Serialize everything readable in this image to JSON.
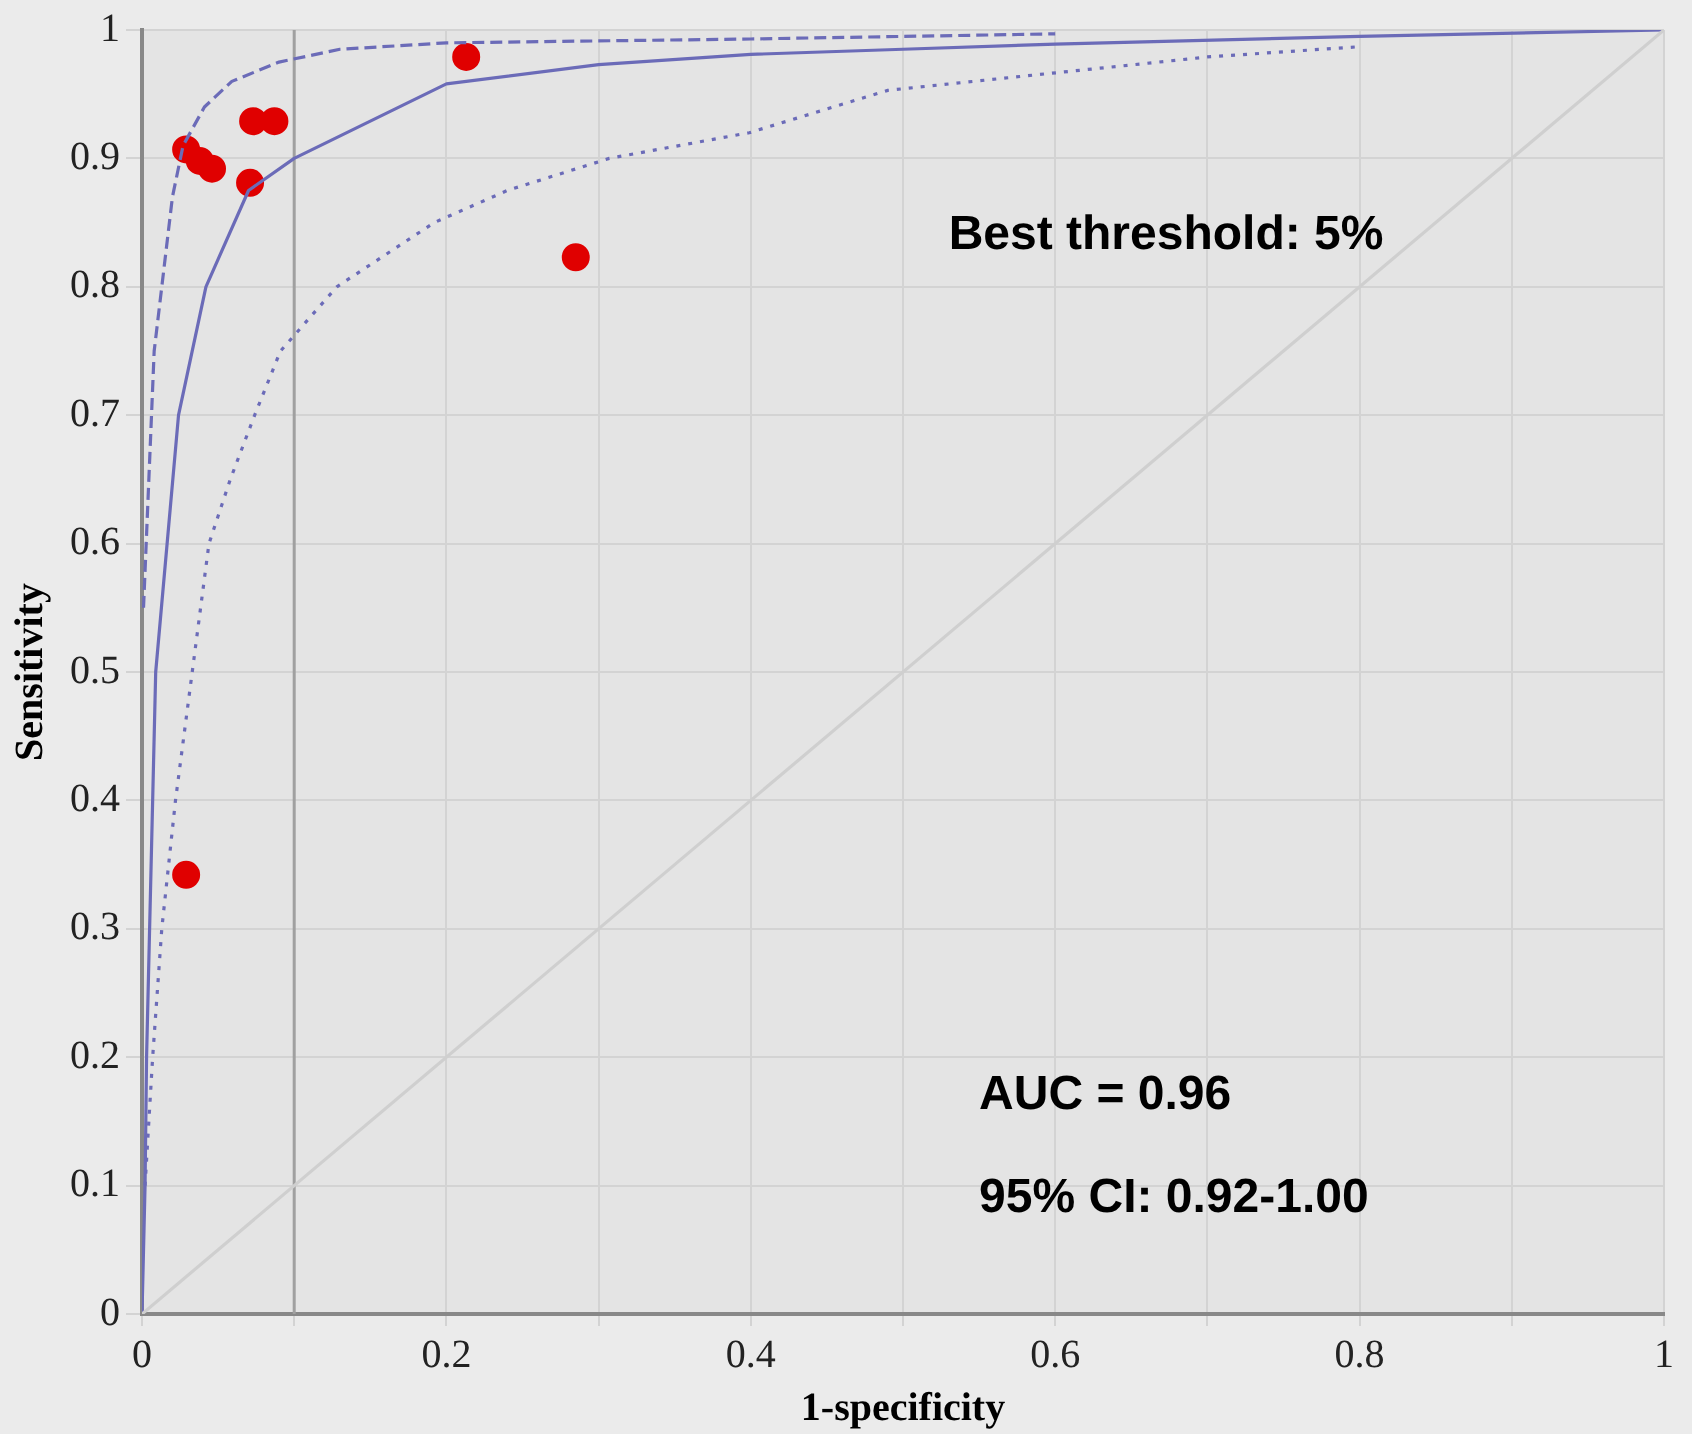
{
  "chart_data": {
    "type": "scatter",
    "xlabel": "1-specificity",
    "ylabel": "Sensitivity",
    "annotations": [
      "Best threshold: 5%",
      "AUC = 0.96",
      "95% CI: 0.92-1.00"
    ],
    "xlim": [
      0,
      1
    ],
    "ylim": [
      0,
      1
    ],
    "xticks": [
      0,
      {
        "value": 0.1,
        "label": null
      },
      0.2,
      {
        "value": 0.3,
        "label": null
      },
      0.4,
      {
        "value": 0.5,
        "label": null
      },
      0.6,
      {
        "value": 0.7,
        "label": null
      },
      0.8,
      {
        "value": 0.9,
        "label": null
      },
      1
    ],
    "yticks": [
      0,
      0.1,
      0.2,
      0.3,
      0.4,
      0.5,
      0.6,
      0.7,
      0.8,
      0.9,
      1
    ],
    "grid": true,
    "legend": false,
    "ref_lines": [
      {
        "axis": "x",
        "value": 0.1,
        "color": "#a0a0a0"
      }
    ],
    "series": [
      {
        "type": "line",
        "marker": "none",
        "color": "#cfcfcf",
        "line_style": "solid",
        "x": [
          0,
          1
        ],
        "values": [
          0,
          1
        ]
      },
      {
        "type": "line",
        "marker": "none",
        "color": "#6b6bb8",
        "line_style": "solid",
        "x": [
          0,
          0.002,
          0.003,
          0.009,
          0.024,
          0.042,
          0.07,
          0.1,
          0.2,
          0.3,
          0.4,
          0.5,
          0.6,
          0.8,
          1
        ],
        "values": [
          0,
          0.1,
          0.2,
          0.5,
          0.7,
          0.8,
          0.875,
          0.9,
          0.958,
          0.973,
          0.981,
          0.985,
          0.989,
          0.995,
          1
        ]
      },
      {
        "type": "line",
        "marker": "none",
        "color": "#6b6bb8",
        "line_style": "dashed",
        "x": [
          0.001,
          0.008,
          0.013,
          0.02,
          0.027,
          0.041,
          0.059,
          0.09,
          0.13,
          0.2,
          0.4,
          0.6
        ],
        "values": [
          0.55,
          0.75,
          0.8,
          0.87,
          0.91,
          0.94,
          0.96,
          0.975,
          0.985,
          0.99,
          0.993,
          0.997
        ]
      },
      {
        "type": "line",
        "marker": "none",
        "color": "#6b6bb8",
        "line_style": "dotted",
        "x": [
          0.002,
          0.007,
          0.013,
          0.022,
          0.033,
          0.044,
          0.058,
          0.074,
          0.091,
          0.128,
          0.192,
          0.24,
          0.307,
          0.399,
          0.49,
          0.7,
          0.8
        ],
        "values": [
          0.1,
          0.2,
          0.3,
          0.4,
          0.5,
          0.6,
          0.65,
          0.7,
          0.75,
          0.8,
          0.85,
          0.875,
          0.9,
          0.92,
          0.953,
          0.979,
          0.987
        ]
      },
      {
        "marker": "circle",
        "color": "#e00000",
        "x": [
          0.029,
          0.038,
          0.046,
          0.071,
          0.073,
          0.087,
          0.213,
          0.285,
          0.029
        ],
        "values": [
          0.907,
          0.898,
          0.892,
          0.881,
          0.929,
          0.929,
          0.979,
          0.823,
          0.342
        ]
      }
    ]
  }
}
